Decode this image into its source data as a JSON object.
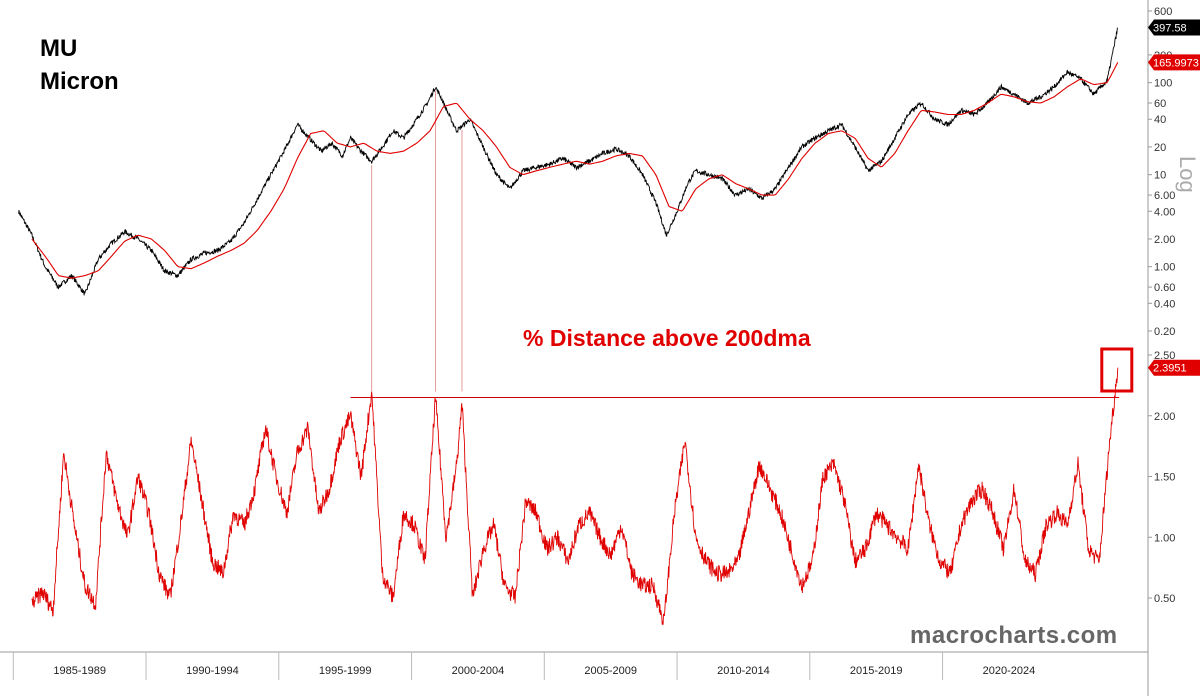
{
  "header": {
    "ticker": "MU",
    "company": "Micron"
  },
  "lower_title": "% Distance above 200dma",
  "watermark": "macrocharts.com",
  "colors": {
    "price": "#000000",
    "ma": "#e00000",
    "ratio": "#e00000",
    "flag_price": "#000000",
    "flag_ma": "#e00000"
  },
  "chart_data": [
    {
      "type": "line",
      "title": "MU Micron",
      "ylabel": "Log",
      "yscale": "log",
      "ylim": [
        0.15,
        600
      ],
      "yticks": [
        "600",
        "200",
        "100",
        "60",
        "40",
        "20",
        "10",
        "6.00",
        "4.00",
        "2.00",
        "1.00",
        "0.60",
        "0.40",
        "0.20"
      ],
      "x_categories": [
        "1985-1989",
        "1990-1994",
        "1995-1999",
        "2000-2004",
        "2005-2009",
        "2010-2014",
        "2015-2019",
        "2020-2024"
      ],
      "series": [
        {
          "key": "price",
          "x": [
            1984.5,
            1985.0,
            1985.5,
            1986.0,
            1986.5,
            1987.0,
            1987.5,
            1988.0,
            1988.5,
            1989.0,
            1989.5,
            1990.0,
            1990.5,
            1991.0,
            1991.5,
            1992.0,
            1992.5,
            1993.0,
            1993.5,
            1994.0,
            1994.5,
            1995.0,
            1995.5,
            1995.9,
            1996.3,
            1996.7,
            1997.0,
            1997.4,
            1997.8,
            1998.2,
            1998.6,
            1999.0,
            1999.5,
            1999.9,
            2000.2,
            2000.4,
            2000.7,
            2001.0,
            2001.5,
            2002.0,
            2002.5,
            2003.0,
            2003.5,
            2004.0,
            2004.5,
            2005.0,
            2005.5,
            2006.0,
            2006.5,
            2007.0,
            2007.5,
            2008.0,
            2008.5,
            2008.9,
            2009.3,
            2009.7,
            2010.0,
            2010.5,
            2011.0,
            2011.5,
            2012.0,
            2012.5,
            2013.0,
            2013.5,
            2014.0,
            2014.5,
            2015.0,
            2015.5,
            2016.0,
            2016.5,
            2017.0,
            2017.5,
            2018.0,
            2018.5,
            2019.0,
            2019.5,
            2020.0,
            2020.5,
            2021.0,
            2021.5,
            2022.0,
            2022.5,
            2023.0,
            2023.5,
            2024.0,
            2024.5,
            2025.0,
            2025.5,
            2025.9
          ],
          "values": [
            4.0,
            2.2,
            1.0,
            0.6,
            0.8,
            0.5,
            1.2,
            1.8,
            2.4,
            2.0,
            1.5,
            0.9,
            0.8,
            1.2,
            1.4,
            1.5,
            1.9,
            3.0,
            5.5,
            10,
            18,
            35,
            24,
            18,
            22,
            16,
            25,
            18,
            14,
            20,
            30,
            25,
            40,
            60,
            90,
            70,
            45,
            30,
            40,
            20,
            10,
            7,
            11,
            12,
            13,
            15,
            12,
            14,
            17,
            19,
            16,
            10,
            5,
            2.2,
            4,
            8,
            11,
            10,
            9,
            6,
            7,
            5.5,
            7,
            12,
            20,
            25,
            30,
            35,
            20,
            11,
            14,
            25,
            45,
            60,
            40,
            35,
            50,
            45,
            60,
            90,
            75,
            60,
            70,
            90,
            130,
            110,
            75,
            105,
            397.58
          ]
        },
        {
          "key": "ma",
          "x": [
            1985.0,
            1985.5,
            1986.0,
            1986.5,
            1987.0,
            1987.5,
            1988.0,
            1988.5,
            1989.0,
            1989.5,
            1990.0,
            1990.5,
            1991.0,
            1991.5,
            1992.0,
            1992.5,
            1993.0,
            1993.5,
            1994.0,
            1994.5,
            1995.0,
            1995.5,
            1996.0,
            1996.5,
            1997.0,
            1997.5,
            1998.0,
            1998.5,
            1999.0,
            1999.5,
            2000.0,
            2000.5,
            2001.0,
            2001.5,
            2002.0,
            2002.5,
            2003.0,
            2003.5,
            2004.0,
            2004.5,
            2005.0,
            2005.5,
            2006.0,
            2006.5,
            2007.0,
            2007.5,
            2008.0,
            2008.5,
            2009.0,
            2009.5,
            2010.0,
            2010.5,
            2011.0,
            2011.5,
            2012.0,
            2012.5,
            2013.0,
            2013.5,
            2014.0,
            2014.5,
            2015.0,
            2015.5,
            2016.0,
            2016.5,
            2017.0,
            2017.5,
            2018.0,
            2018.5,
            2019.0,
            2019.5,
            2020.0,
            2020.5,
            2021.0,
            2021.5,
            2022.0,
            2022.5,
            2023.0,
            2023.5,
            2024.0,
            2024.5,
            2025.0,
            2025.5,
            2025.9
          ],
          "values": [
            2.0,
            1.3,
            0.8,
            0.75,
            0.8,
            0.9,
            1.3,
            1.9,
            2.2,
            2.0,
            1.5,
            1.0,
            0.95,
            1.1,
            1.3,
            1.5,
            1.8,
            2.5,
            4.0,
            7,
            15,
            28,
            30,
            22,
            20,
            22,
            18,
            17,
            18,
            22,
            30,
            55,
            60,
            40,
            30,
            20,
            12,
            10,
            11,
            12,
            13,
            14,
            13,
            14,
            16,
            17,
            16,
            10,
            4.5,
            4,
            7,
            9,
            10,
            8,
            7,
            6,
            6,
            9,
            15,
            22,
            28,
            30,
            25,
            15,
            12,
            17,
            30,
            50,
            48,
            45,
            45,
            50,
            60,
            75,
            70,
            62,
            60,
            70,
            90,
            110,
            95,
            100,
            165.9973
          ]
        }
      ],
      "last_labels": {
        "price": "397.58",
        "ma": "165.9973"
      }
    },
    {
      "type": "line",
      "title": "% Distance above 200dma",
      "ylim": [
        0.25,
        2.6
      ],
      "yticks": [
        "2.50",
        "2.00",
        "1.50",
        "1.00",
        "0.50"
      ],
      "threshold": 2.15,
      "highlight_peaks_x": [
        1997.8,
        2000.2,
        2001.2
      ],
      "series": [
        {
          "key": "ratio",
          "x": [
            1985.0,
            1985.4,
            1985.8,
            1986.2,
            1986.6,
            1987.0,
            1987.4,
            1987.8,
            1988.2,
            1988.6,
            1989.0,
            1989.4,
            1989.8,
            1990.2,
            1990.6,
            1991.0,
            1991.4,
            1991.8,
            1992.2,
            1992.6,
            1993.0,
            1993.4,
            1993.8,
            1994.2,
            1994.6,
            1995.0,
            1995.4,
            1995.8,
            1996.2,
            1996.6,
            1997.0,
            1997.4,
            1997.8,
            1998.2,
            1998.6,
            1999.0,
            1999.4,
            1999.8,
            2000.2,
            2000.6,
            2001.0,
            2001.2,
            2001.6,
            2002.0,
            2002.4,
            2002.8,
            2003.2,
            2003.6,
            2004.0,
            2004.4,
            2004.8,
            2005.2,
            2005.6,
            2006.0,
            2006.4,
            2006.8,
            2007.2,
            2007.6,
            2008.0,
            2008.4,
            2008.8,
            2009.2,
            2009.6,
            2010.0,
            2010.4,
            2010.8,
            2011.2,
            2011.6,
            2012.0,
            2012.4,
            2012.8,
            2013.2,
            2013.6,
            2014.0,
            2014.4,
            2014.8,
            2015.2,
            2015.6,
            2016.0,
            2016.4,
            2016.8,
            2017.2,
            2017.6,
            2018.0,
            2018.4,
            2018.8,
            2019.2,
            2019.6,
            2020.0,
            2020.4,
            2020.8,
            2021.2,
            2021.6,
            2022.0,
            2022.4,
            2022.8,
            2023.2,
            2023.6,
            2024.0,
            2024.4,
            2024.8,
            2025.2,
            2025.6,
            2025.9
          ],
          "values": [
            0.45,
            0.55,
            0.4,
            1.7,
            1.1,
            0.6,
            0.45,
            1.7,
            1.3,
            1.0,
            1.5,
            1.2,
            0.7,
            0.5,
            1.1,
            1.8,
            1.3,
            0.8,
            0.7,
            1.2,
            1.1,
            1.4,
            1.9,
            1.5,
            1.2,
            1.7,
            1.9,
            1.2,
            1.4,
            1.8,
            2.0,
            1.5,
            2.2,
            0.7,
            0.5,
            1.2,
            1.1,
            0.8,
            2.15,
            1.0,
            1.6,
            2.1,
            0.5,
            0.9,
            1.1,
            0.6,
            0.5,
            1.3,
            1.2,
            0.9,
            1.0,
            0.8,
            1.1,
            1.2,
            1.0,
            0.85,
            1.1,
            0.7,
            0.6,
            0.6,
            0.3,
            1.2,
            1.8,
            1.0,
            0.8,
            0.7,
            0.7,
            0.8,
            1.2,
            1.6,
            1.4,
            1.2,
            0.9,
            0.6,
            0.8,
            1.5,
            1.6,
            1.3,
            0.8,
            0.9,
            1.2,
            1.1,
            1.0,
            0.9,
            1.6,
            1.1,
            0.8,
            0.7,
            1.1,
            1.3,
            1.4,
            1.2,
            0.9,
            1.4,
            0.8,
            0.7,
            1.1,
            1.2,
            1.1,
            1.6,
            0.9,
            0.8,
            1.8,
            2.3951
          ]
        }
      ],
      "last_label": "2.3951"
    }
  ]
}
